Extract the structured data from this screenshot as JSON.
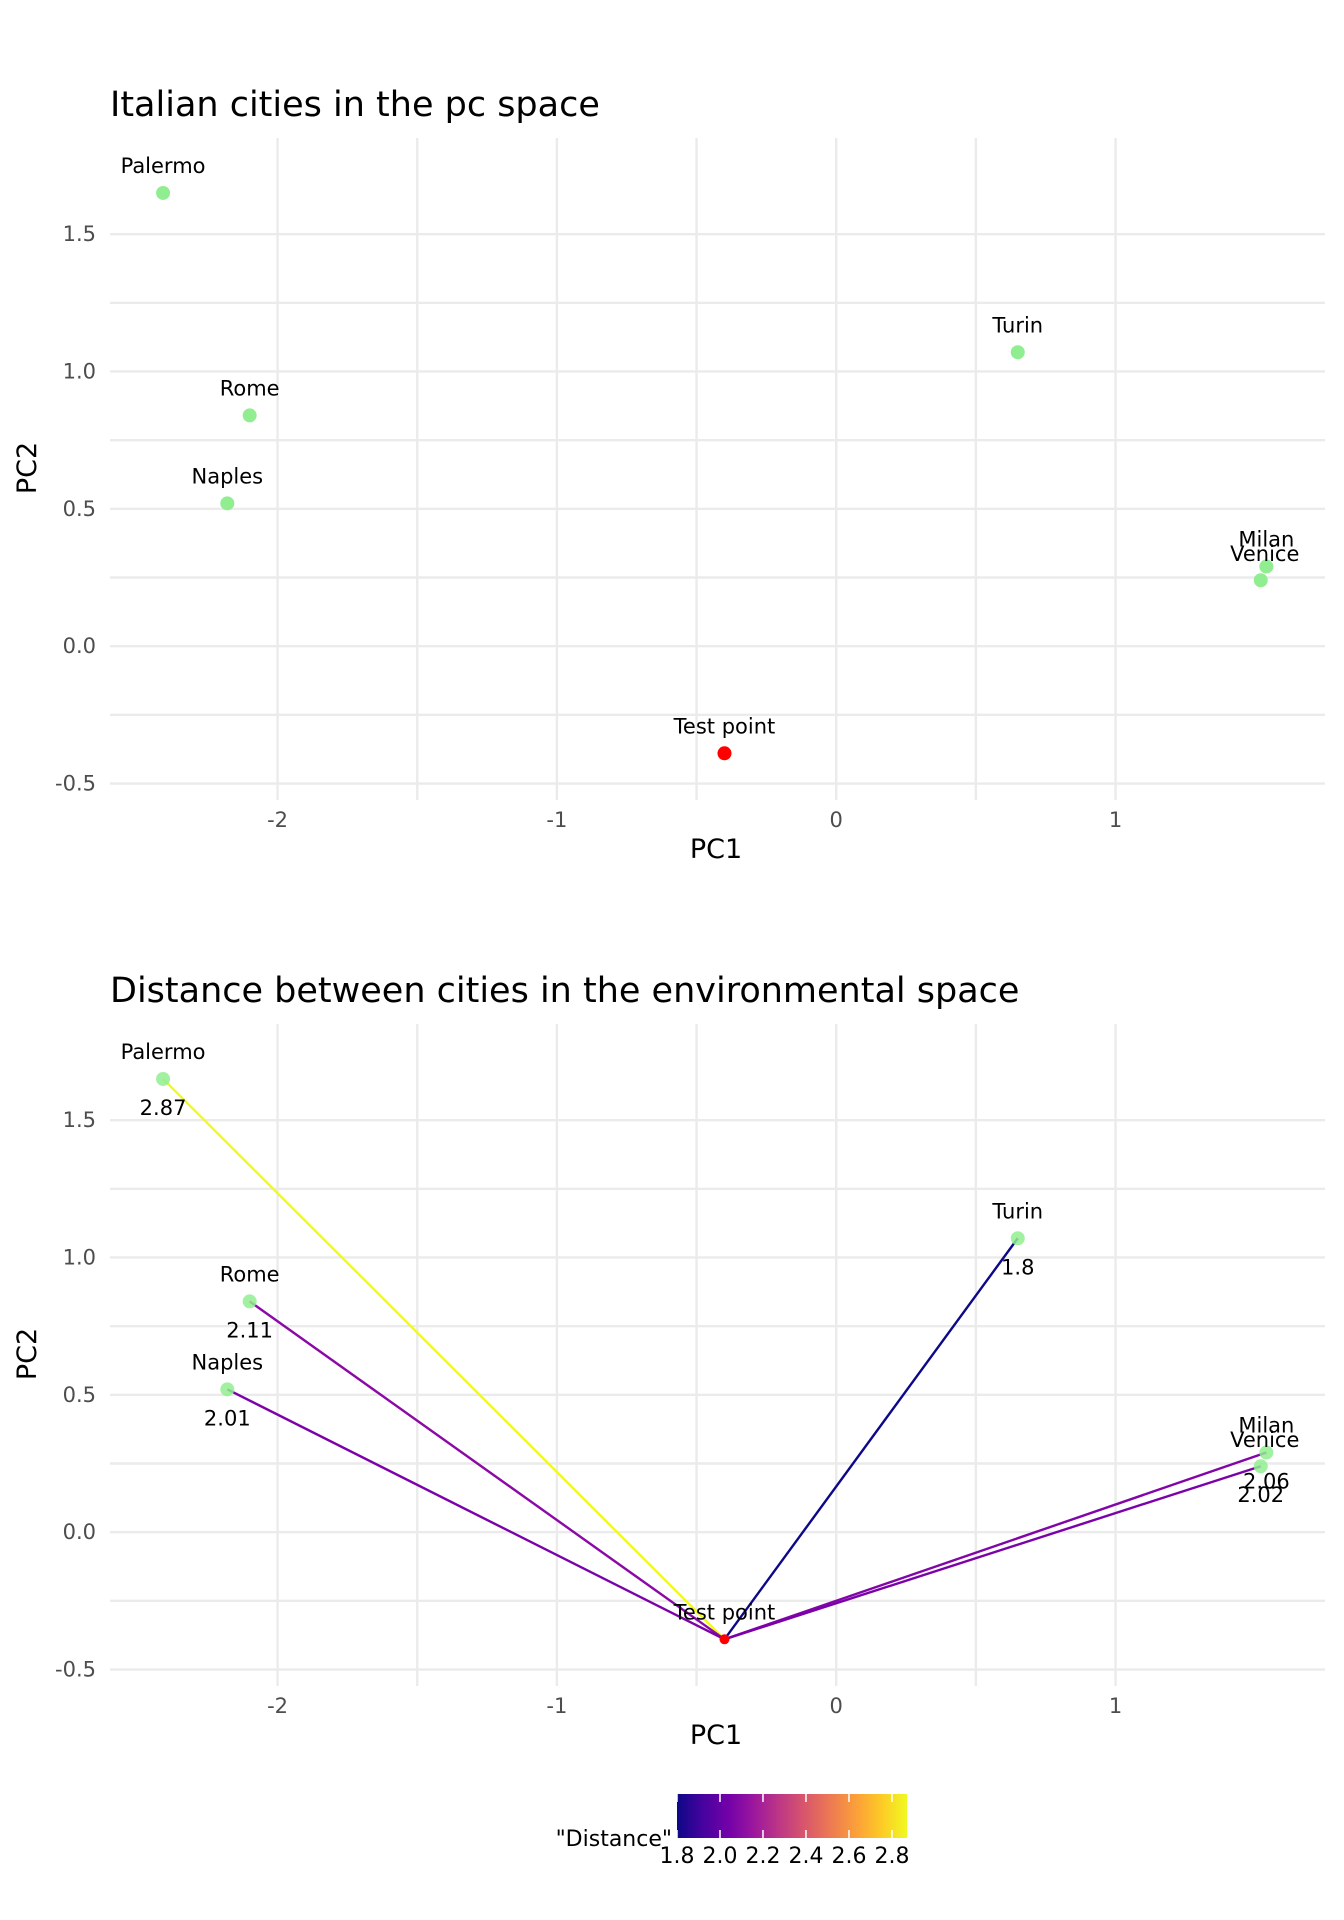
{
  "chart_data": [
    {
      "type": "scatter",
      "title": "Italian cities in the pc space",
      "xlabel": "PC1",
      "ylabel": "PC2",
      "xlim": [
        -2.6,
        1.75
      ],
      "ylim": [
        -0.56,
        1.85
      ],
      "x_ticks": [
        -2,
        -1,
        0,
        1
      ],
      "y_ticks": [
        -0.5,
        0.0,
        0.5,
        1.0,
        1.5
      ],
      "x_tick_labels": [
        "-2",
        "-1",
        "0",
        "1"
      ],
      "y_tick_labels": [
        "-0.5",
        "0.0",
        "0.5",
        "1.0",
        "1.5"
      ],
      "grid": true,
      "points": [
        {
          "label": "Palermo",
          "x": -2.41,
          "y": 1.65,
          "color": "#90ee90"
        },
        {
          "label": "Rome",
          "x": -2.1,
          "y": 0.84,
          "color": "#90ee90"
        },
        {
          "label": "Naples",
          "x": -2.18,
          "y": 0.52,
          "color": "#90ee90"
        },
        {
          "label": "Turin",
          "x": 0.65,
          "y": 1.07,
          "color": "#90ee90"
        },
        {
          "label": "Milan",
          "x": 1.54,
          "y": 0.29,
          "color": "#90ee90"
        },
        {
          "label": "Venice",
          "x": 1.52,
          "y": 0.24,
          "color": "#90ee90"
        },
        {
          "label": "Test point",
          "x": -0.4,
          "y": -0.39,
          "color": "#ff0000"
        }
      ]
    },
    {
      "type": "scatter",
      "title": "Distance between cities in the environmental space",
      "xlabel": "PC1",
      "ylabel": "PC2",
      "xlim": [
        -2.6,
        1.75
      ],
      "ylim": [
        -0.56,
        1.85
      ],
      "x_ticks": [
        -2,
        -1,
        0,
        1
      ],
      "y_ticks": [
        -0.5,
        0.0,
        0.5,
        1.0,
        1.5
      ],
      "x_tick_labels": [
        "-2",
        "-1",
        "0",
        "1"
      ],
      "y_tick_labels": [
        "-0.5",
        "0.0",
        "0.5",
        "1.0",
        "1.5"
      ],
      "grid": true,
      "points": [
        {
          "label": "Palermo",
          "x": -2.41,
          "y": 1.65,
          "color": "#90ee90"
        },
        {
          "label": "Rome",
          "x": -2.1,
          "y": 0.84,
          "color": "#90ee90"
        },
        {
          "label": "Naples",
          "x": -2.18,
          "y": 0.52,
          "color": "#90ee90"
        },
        {
          "label": "Turin",
          "x": 0.65,
          "y": 1.07,
          "color": "#90ee90"
        },
        {
          "label": "Milan",
          "x": 1.54,
          "y": 0.29,
          "color": "#90ee90"
        },
        {
          "label": "Venice",
          "x": 1.52,
          "y": 0.24,
          "color": "#90ee90"
        },
        {
          "label": "Test point",
          "x": -0.4,
          "y": -0.39,
          "color": "#ff0000"
        }
      ],
      "segments": [
        {
          "from": "Test point",
          "to": "Palermo",
          "distance": 2.87,
          "distance_label": "2.87",
          "color": "#f0f921"
        },
        {
          "from": "Test point",
          "to": "Rome",
          "distance": 2.11,
          "distance_label": "2.11",
          "color": "#8b0aa5"
        },
        {
          "from": "Test point",
          "to": "Naples",
          "distance": 2.01,
          "distance_label": "2.01",
          "color": "#7a02a8"
        },
        {
          "from": "Test point",
          "to": "Turin",
          "distance": 1.8,
          "distance_label": "1.8",
          "color": "#0d0887"
        },
        {
          "from": "Test point",
          "to": "Milan",
          "distance": 2.06,
          "distance_label": "2.06",
          "color": "#8105a7"
        },
        {
          "from": "Test point",
          "to": "Venice",
          "distance": 2.02,
          "distance_label": "2.02",
          "color": "#7b02a8"
        }
      ],
      "legend": {
        "title": "\"Distance\"",
        "type": "colorbar",
        "position": "bottom",
        "range": [
          1.8,
          2.87
        ],
        "ticks": [
          1.8,
          2.0,
          2.2,
          2.4,
          2.6,
          2.8
        ],
        "tick_labels": [
          "1.8",
          "2.0",
          "2.2",
          "2.4",
          "2.6",
          "2.8"
        ],
        "colormap": "plasma",
        "color_stops": [
          "#0d0887",
          "#46039f",
          "#7201a8",
          "#9c179e",
          "#bd3786",
          "#d8576b",
          "#ed7953",
          "#fb9f3a",
          "#fdca26",
          "#f0f921"
        ]
      }
    }
  ]
}
